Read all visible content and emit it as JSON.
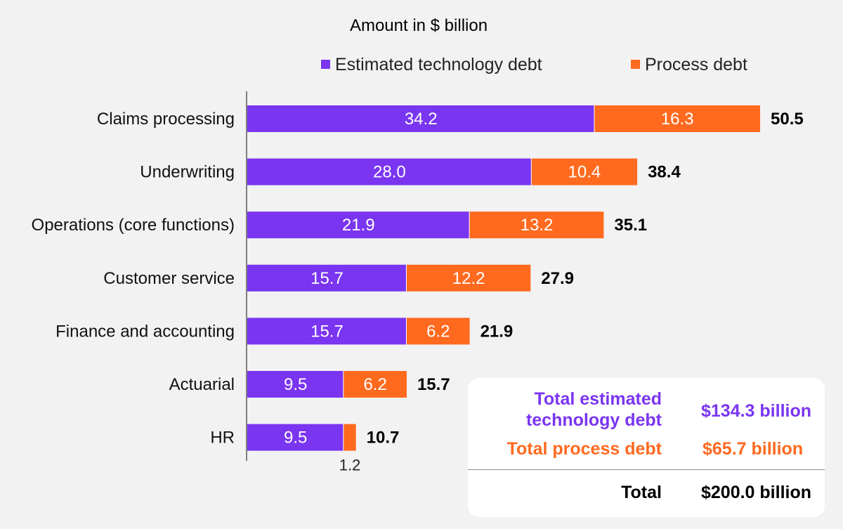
{
  "colors": {
    "technology": "#7a35f0",
    "process": "#ff6a1f",
    "axis": "#7f7f7f",
    "background": "#f2f2f2"
  },
  "chart_data": {
    "type": "bar",
    "orientation": "horizontal",
    "stacked": true,
    "unit_title": "Amount in $ billion",
    "categories": [
      "Claims processing",
      "Underwriting",
      "Operations (core functions)",
      "Customer service",
      "Finance and accounting",
      "Actuarial",
      "HR"
    ],
    "series": [
      {
        "name": "Estimated technology debt",
        "values": [
          34.2,
          28.0,
          21.9,
          15.7,
          15.7,
          9.5,
          9.5
        ],
        "labels": [
          "34.2",
          "28.0",
          "21.9",
          "15.7",
          "15.7",
          "9.5",
          "9.5"
        ]
      },
      {
        "name": "Process debt",
        "values": [
          16.3,
          10.4,
          13.2,
          12.2,
          6.2,
          6.2,
          1.2
        ],
        "labels": [
          "16.3",
          "10.4",
          "13.2",
          "12.2",
          "6.2",
          "6.2",
          "1.2"
        ]
      }
    ],
    "totals": [
      "50.5",
      "38.4",
      "35.1",
      "27.9",
      "21.9",
      "15.7",
      "10.7"
    ],
    "xlim": [
      0,
      50.5
    ],
    "legend_position": "top",
    "grid": false
  },
  "summary": {
    "tech_label": "Total estimated technology debt",
    "tech_value": "$134.3 billion",
    "process_label": "Total process debt",
    "process_value": "$65.7 billion",
    "total_label": "Total",
    "total_value": "$200.0 billion"
  }
}
